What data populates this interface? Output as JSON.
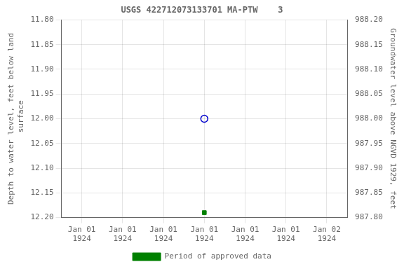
{
  "chart_data": {
    "type": "scatter",
    "title": "USGS 422712073133701 MA-PTW    3",
    "ylabel": "Depth to water level, feet below land\n surface",
    "y2label": "Groundwater level above NGVD 1929, feet",
    "x": [
      0.5
    ],
    "series": [
      {
        "color": "#0000cc",
        "marker": "circle-open",
        "values": [
          12.0
        ]
      },
      {
        "name": "Period of approved data",
        "color": "#008000",
        "marker": "square",
        "values": [
          12.19
        ]
      }
    ],
    "xlim": [
      -0.08333333333333333,
      1.0833333333333333
    ],
    "xticks": [
      {
        "value": 0,
        "label": "Jan 01\n1924"
      },
      {
        "value": 0.16666666666666666,
        "label": "Jan 01\n1924"
      },
      {
        "value": 0.3333333333333333,
        "label": "Jan 01\n1924"
      },
      {
        "value": 0.5,
        "label": "Jan 01\n1924"
      },
      {
        "value": 0.6666666666666666,
        "label": "Jan 01\n1924"
      },
      {
        "value": 0.8333333333333333,
        "label": "Jan 01\n1924"
      },
      {
        "value": 1.0,
        "label": "Jan 02\n1924"
      }
    ],
    "ylim": [
      12.2,
      11.8
    ],
    "yticks": [
      {
        "value": 11.8,
        "label": "11.80"
      },
      {
        "value": 11.85,
        "label": "11.85"
      },
      {
        "value": 11.9,
        "label": "11.90"
      },
      {
        "value": 11.95,
        "label": "11.95"
      },
      {
        "value": 12.0,
        "label": "12.00"
      },
      {
        "value": 12.05,
        "label": "12.05"
      },
      {
        "value": 12.1,
        "label": "12.10"
      },
      {
        "value": 12.15,
        "label": "12.15"
      },
      {
        "value": 12.2,
        "label": "12.20"
      }
    ],
    "y2lim": [
      987.8,
      988.2
    ],
    "y2ticks": [
      {
        "value": 988.2,
        "label": "988.20"
      },
      {
        "value": 988.15,
        "label": "988.15"
      },
      {
        "value": 988.1,
        "label": "988.10"
      },
      {
        "value": 988.05,
        "label": "988.05"
      },
      {
        "value": 988.0,
        "label": "988.00"
      },
      {
        "value": 987.95,
        "label": "987.95"
      },
      {
        "value": 987.9,
        "label": "987.90"
      },
      {
        "value": 987.85,
        "label": "987.85"
      },
      {
        "value": 987.8,
        "label": "987.80"
      }
    ],
    "grid": true,
    "legend": "bottom"
  }
}
